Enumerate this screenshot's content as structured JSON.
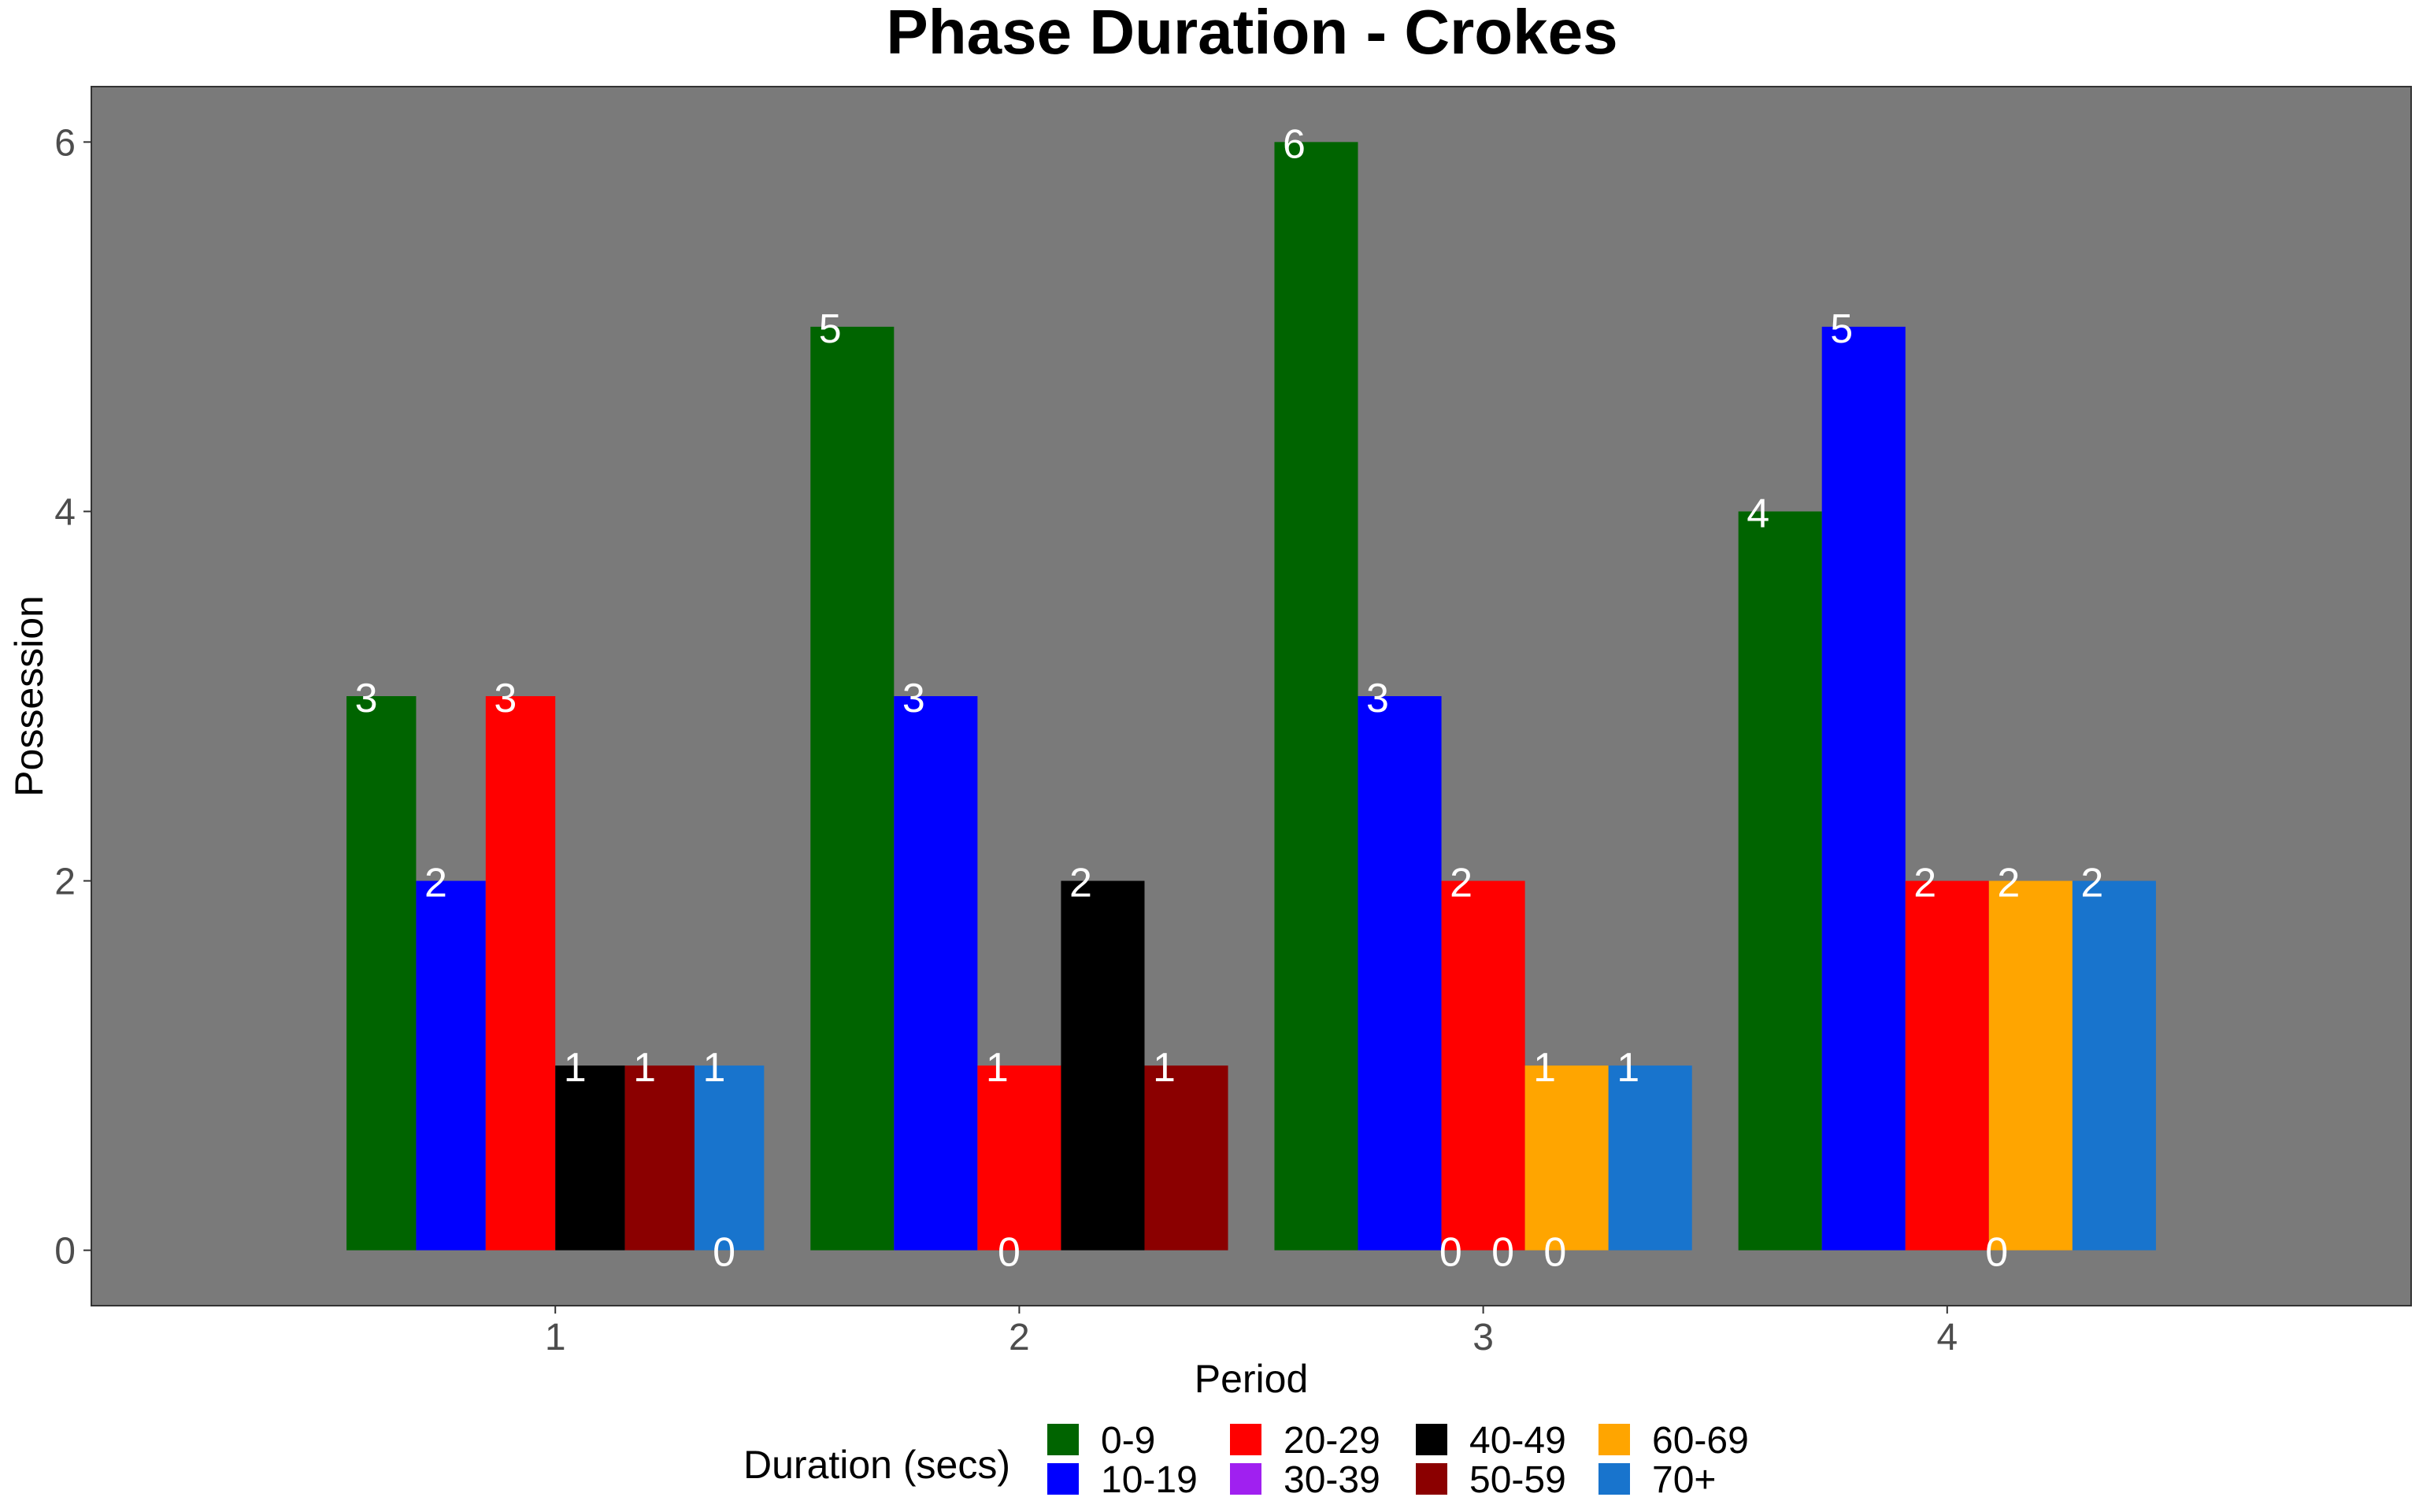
{
  "chart_data": {
    "type": "bar",
    "title": "Phase Duration - Crokes",
    "xlabel": "Period",
    "ylabel": "Possession",
    "categories": [
      "1",
      "2",
      "3",
      "4"
    ],
    "ylim": [
      -0.3,
      6.3
    ],
    "yticks": [
      0,
      2,
      4,
      6
    ],
    "grid": false,
    "panel_background": "#7a7a7a",
    "legend": {
      "title": "Duration (secs)",
      "position": "bottom",
      "ncol": 5
    },
    "series": [
      {
        "name": "0-9",
        "color": "#006400",
        "values": [
          3,
          5,
          6,
          4
        ]
      },
      {
        "name": "10-19",
        "color": "#0000ff",
        "values": [
          2,
          3,
          3,
          5
        ]
      },
      {
        "name": "20-29",
        "color": "#ff0000",
        "values": [
          3,
          1,
          2,
          2
        ]
      },
      {
        "name": "30-39",
        "color": "#a020f0",
        "values": [
          null,
          null,
          null,
          null
        ]
      },
      {
        "name": "40-49",
        "color": "#000000",
        "values": [
          1,
          2,
          null,
          null
        ]
      },
      {
        "name": "50-59",
        "color": "#8b0000",
        "values": [
          1,
          1,
          null,
          null
        ]
      },
      {
        "name": "60-69",
        "color": "#ffa500",
        "values": [
          null,
          null,
          1,
          2
        ]
      },
      {
        "name": "70+",
        "color": "#1874cd",
        "values": [
          1,
          null,
          1,
          2
        ]
      }
    ],
    "zero_labels": [
      {
        "category": "1",
        "slot": 6,
        "slots": 7,
        "text": "0"
      },
      {
        "category": "2",
        "slot": 3,
        "slots": 7,
        "text": "0"
      },
      {
        "category": "3",
        "slot": 3,
        "slots": 8,
        "text": "0"
      },
      {
        "category": "3",
        "slot": 4,
        "slots": 8,
        "text": "0"
      },
      {
        "category": "3",
        "slot": 5,
        "slots": 8,
        "text": "0"
      },
      {
        "category": "4",
        "slot": 4,
        "slots": 7,
        "text": "0"
      }
    ]
  }
}
